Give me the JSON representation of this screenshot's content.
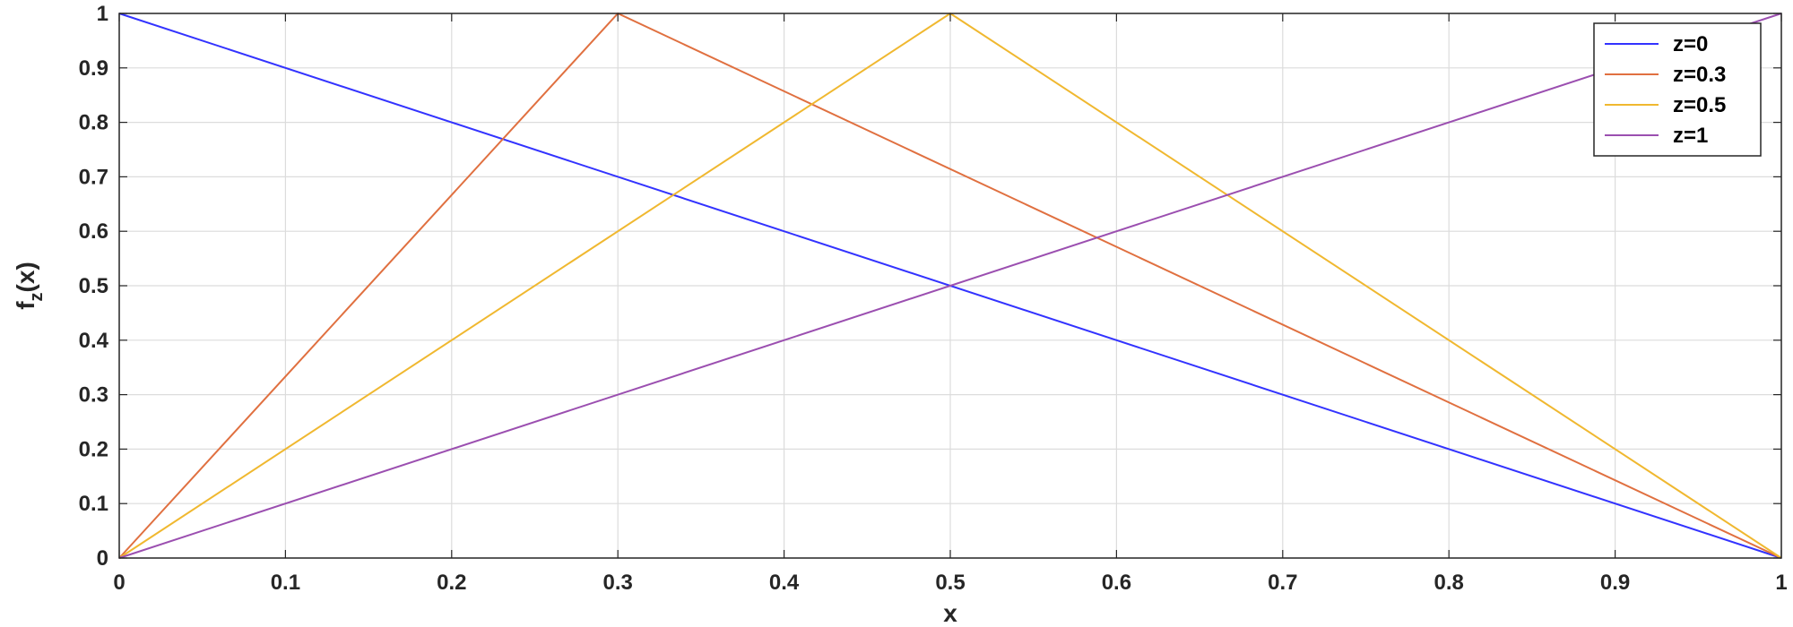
{
  "chart_data": {
    "type": "line",
    "xlabel": "x",
    "ylabel": "f_z(x)",
    "xlim": [
      0,
      1
    ],
    "ylim": [
      0,
      1
    ],
    "grid": true,
    "legend_position": "top-right",
    "xticks": [
      "0",
      "0.1",
      "0.2",
      "0.3",
      "0.4",
      "0.5",
      "0.6",
      "0.7",
      "0.8",
      "0.9",
      "1"
    ],
    "yticks": [
      "0",
      "0.1",
      "0.2",
      "0.3",
      "0.4",
      "0.5",
      "0.6",
      "0.7",
      "0.8",
      "0.9",
      "1"
    ],
    "series": [
      {
        "name": "z=0",
        "color": "#3333ff",
        "x": [
          0,
          1
        ],
        "y": [
          1,
          0
        ]
      },
      {
        "name": "z=0.3",
        "color": "#e07040",
        "x": [
          0,
          0.3,
          1
        ],
        "y": [
          0,
          1,
          0
        ]
      },
      {
        "name": "z=0.5",
        "color": "#f0b830",
        "x": [
          0,
          0.5,
          1
        ],
        "y": [
          0,
          1,
          0
        ]
      },
      {
        "name": "z=1",
        "color": "#9b4fb0",
        "x": [
          0,
          1
        ],
        "y": [
          0,
          1
        ]
      }
    ]
  }
}
